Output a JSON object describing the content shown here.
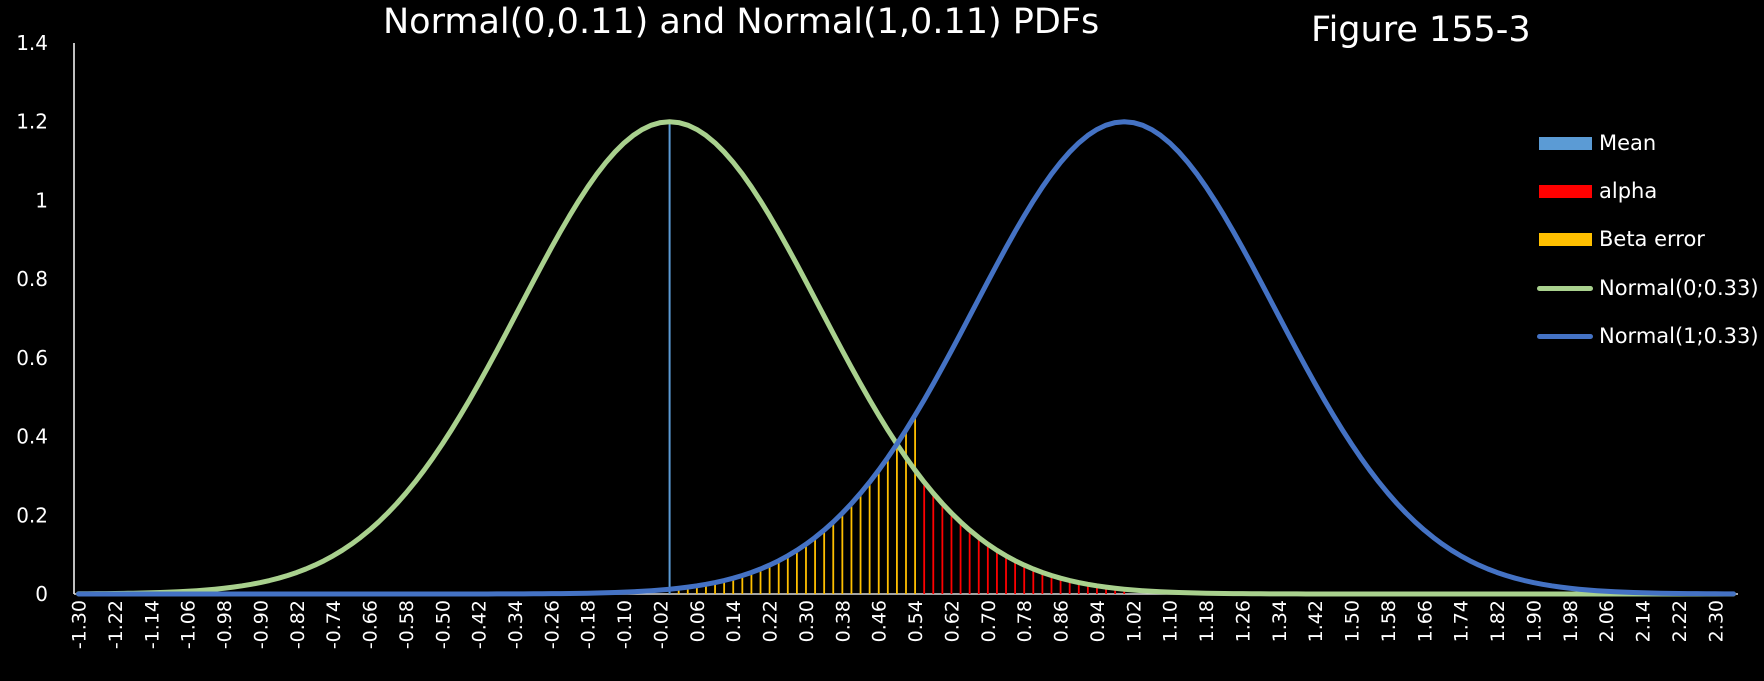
{
  "chart_data": {
    "type": "line",
    "title": "Normal(0,0.11) and Normal(1,0.11) PDFs",
    "figure_label": "Figure 155-3",
    "xlabel": "",
    "ylabel": "",
    "ylim": [
      0,
      1.4
    ],
    "xlim": [
      -1.3,
      2.34
    ],
    "x_step": 0.02,
    "y_ticks": [
      "0",
      "0.2",
      "0.4",
      "0.6",
      "0.8",
      "1",
      "1.2",
      "1.4"
    ],
    "x_ticks": [
      "-1.30",
      "-1.22",
      "-1.14",
      "-1.06",
      "-0.98",
      "-0.90",
      "-0.82",
      "-0.74",
      "-0.66",
      "-0.58",
      "-0.50",
      "-0.42",
      "-0.34",
      "-0.26",
      "-0.18",
      "-0.10",
      "-0.02",
      "0.06",
      "0.14",
      "0.22",
      "0.30",
      "0.38",
      "0.46",
      "0.54",
      "0.62",
      "0.70",
      "0.78",
      "0.86",
      "0.94",
      "1.02",
      "1.10",
      "1.18",
      "1.26",
      "1.34",
      "1.42",
      "1.50",
      "1.58",
      "1.66",
      "1.74",
      "1.82",
      "1.90",
      "1.98",
      "2.06",
      "2.14",
      "2.22",
      "2.30"
    ],
    "series": [
      {
        "name": "Mean",
        "kind": "column",
        "color": "#5b9bd5",
        "x": [
          0.0
        ],
        "values": [
          1.2
        ]
      },
      {
        "name": "alpha",
        "kind": "column",
        "color": "#ff0000",
        "x_range": [
          0.56,
          1.0
        ],
        "source": "Normal(0;0.33)"
      },
      {
        "name": "Beta error",
        "kind": "column",
        "color": "#ffc000",
        "x_range": [
          0.0,
          0.54
        ],
        "source": "Normal(1;0.33)"
      },
      {
        "name": "Normal(0;0.33)",
        "kind": "line",
        "color": "#a9d18e",
        "mean": 0,
        "sd": 0.33,
        "peak": 1.2
      },
      {
        "name": "Normal(1;0.33)",
        "kind": "line",
        "color": "#4472c4",
        "mean": 1,
        "sd": 0.33,
        "peak": 1.2
      }
    ],
    "legend_position": "right",
    "grid": false
  }
}
